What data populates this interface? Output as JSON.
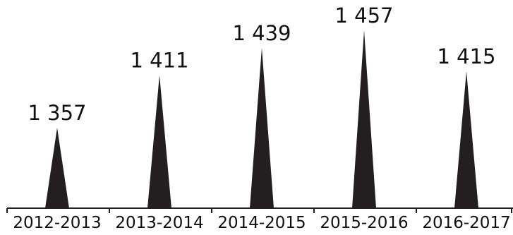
{
  "chart_data": {
    "type": "bar",
    "categories": [
      "2012-2013",
      "2013-2014",
      "2014-2015",
      "2015-2016",
      "2016-2017"
    ],
    "values": [
      1357,
      1411,
      1439,
      1457,
      1415
    ],
    "value_labels": [
      "1 357",
      "1 411",
      "1 439",
      "1 457",
      "1 415"
    ],
    "mark_shape": "triangle",
    "title": "",
    "xlabel": "",
    "ylabel": "",
    "grid": false,
    "legend": "none",
    "colors": {
      "mark": "#231f20",
      "axis": "#231f20",
      "text": "#111111"
    }
  }
}
